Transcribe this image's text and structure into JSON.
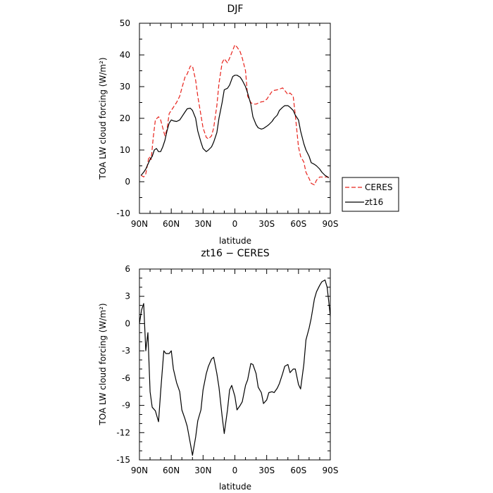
{
  "chart_data": [
    {
      "type": "line",
      "title": "DJF",
      "xlabel": "latitude",
      "ylabel": "TOA LW cloud forcing (W/m²)",
      "xlim": [
        90,
        -90
      ],
      "ylim": [
        -10,
        50
      ],
      "x_ticks": [
        90,
        60,
        30,
        0,
        -30,
        -60,
        -90
      ],
      "x_tick_labels": [
        "90N",
        "60N",
        "30N",
        "0",
        "30S",
        "60S",
        "90S"
      ],
      "y_ticks": [
        -10,
        0,
        10,
        20,
        30,
        40,
        50
      ],
      "y_tick_labels": [
        "-10",
        "0",
        "10",
        "20",
        "30",
        "40",
        "50"
      ],
      "legend_position": "right, outside plot",
      "series": [
        {
          "name": "CERES",
          "color": "#e8231c",
          "dash": "dashed",
          "x": [
            88.5,
            86,
            84,
            81,
            79,
            77,
            75,
            72,
            70,
            68,
            66,
            64,
            62,
            60,
            57,
            55,
            52,
            50,
            47,
            45,
            42,
            40,
            37,
            35,
            32,
            30,
            27,
            25,
            22,
            20,
            17,
            15,
            12,
            10,
            7,
            5,
            2,
            0,
            -2,
            -5,
            -7,
            -10,
            -12,
            -15,
            -17,
            -20,
            -22,
            -25,
            -27,
            -30,
            -32,
            -35,
            -37,
            -40,
            -42,
            -45,
            -47,
            -50,
            -52,
            -55,
            -57,
            -60,
            -62,
            -65,
            -67,
            -70,
            -72,
            -75,
            -77,
            -80,
            -82,
            -85,
            -87,
            -88.5
          ],
          "y": [
            2,
            1.5,
            2.5,
            8,
            7,
            14,
            19.5,
            20.5,
            19.5,
            17,
            14.5,
            16.5,
            21.5,
            22.5,
            24,
            25,
            27,
            29.5,
            33,
            34,
            36.5,
            36.5,
            32,
            27,
            21,
            17,
            14,
            13.5,
            14.5,
            17,
            24,
            31,
            37.5,
            38.8,
            37.5,
            39,
            41.5,
            43.2,
            42.5,
            41,
            39,
            35,
            27,
            25,
            24.5,
            24.5,
            24.8,
            25.2,
            25.3,
            26,
            27,
            28.5,
            28.8,
            29,
            29.2,
            29.6,
            28.8,
            27.5,
            28,
            27,
            21,
            11,
            8,
            6.2,
            3,
            1,
            -0.5,
            -1,
            0.5,
            1.5,
            1.5,
            1.5,
            1.5,
            1.5
          ]
        },
        {
          "name": "zt16",
          "color": "#000000",
          "dash": "solid",
          "x": [
            88.5,
            86,
            84,
            82,
            80,
            78,
            76,
            74,
            72,
            70,
            68,
            66,
            64,
            62,
            60,
            58,
            55,
            52,
            50,
            47,
            45,
            42,
            40,
            37,
            35,
            32,
            30,
            27,
            25,
            22,
            20,
            17,
            15,
            12,
            10,
            7,
            5,
            2,
            0,
            -2,
            -5,
            -7,
            -10,
            -12,
            -15,
            -17,
            -20,
            -22,
            -25,
            -27,
            -30,
            -32,
            -35,
            -37,
            -40,
            -42,
            -45,
            -47,
            -50,
            -52,
            -55,
            -57,
            -60,
            -62,
            -65,
            -67,
            -70,
            -72,
            -75,
            -77,
            -80,
            -82,
            -85,
            -87,
            -88.5
          ],
          "y": [
            2,
            3,
            4,
            5.5,
            7,
            8,
            10,
            10.5,
            9.5,
            9.5,
            11,
            13,
            16,
            18.5,
            19.5,
            19.2,
            19,
            19.5,
            20.5,
            22,
            23,
            23.2,
            22.5,
            20,
            16,
            12.5,
            10.5,
            9.5,
            10,
            11,
            12.5,
            15.5,
            20,
            25,
            29,
            29.5,
            30.5,
            33.2,
            33.6,
            33.6,
            33,
            32,
            30,
            28,
            24.5,
            20.5,
            18,
            17,
            16.6,
            16.8,
            17.5,
            18,
            19,
            20,
            21,
            22.5,
            23.5,
            24,
            24,
            23.5,
            22.5,
            21,
            19.5,
            16,
            12,
            10,
            8,
            6,
            5.5,
            5,
            4,
            3,
            2,
            1.6,
            1.2
          ]
        }
      ]
    },
    {
      "type": "line",
      "title": "zt16 − CERES",
      "xlabel": "latitude",
      "ylabel": "TOA LW cloud forcing (W/m²)",
      "xlim": [
        90,
        -90
      ],
      "ylim": [
        -15,
        6
      ],
      "x_ticks": [
        90,
        60,
        30,
        0,
        -30,
        -60,
        -90
      ],
      "x_tick_labels": [
        "90N",
        "60N",
        "30N",
        "0",
        "30S",
        "60S",
        "90S"
      ],
      "y_ticks": [
        -15,
        -12,
        -9,
        -6,
        -3,
        0,
        3,
        6
      ],
      "y_tick_labels": [
        "-15",
        "-12",
        "-9",
        "-6",
        "-3",
        "0",
        "3",
        "6"
      ],
      "series": [
        {
          "color": "#000000",
          "dash": "solid",
          "x": [
            90,
            88,
            86,
            84,
            82,
            80,
            78,
            75,
            72,
            70,
            67,
            65,
            62,
            60,
            58,
            55,
            52,
            50,
            47,
            45,
            42,
            40,
            37,
            35,
            32,
            30,
            27,
            25,
            22,
            20,
            17,
            15,
            12,
            10,
            7,
            5,
            3,
            0,
            -2,
            -5,
            -7,
            -10,
            -12,
            -15,
            -17,
            -20,
            -22,
            -25,
            -27,
            -30,
            -32,
            -35,
            -37,
            -40,
            -42,
            -45,
            -47,
            -50,
            -52,
            -55,
            -57,
            -60,
            -62,
            -65,
            -67,
            -70,
            -72,
            -75,
            -77,
            -80,
            -82,
            -85,
            -87,
            -88.5,
            -90
          ],
          "y": [
            0,
            1.5,
            2.2,
            -3,
            -1,
            -7.5,
            -9.2,
            -9.6,
            -10.8,
            -7.5,
            -3,
            -3.3,
            -3.3,
            -3,
            -5,
            -6.5,
            -7.5,
            -9.5,
            -10.5,
            -11.3,
            -13.2,
            -14.5,
            -12.5,
            -10.7,
            -9.5,
            -7.3,
            -5.5,
            -4.7,
            -3.9,
            -3.7,
            -5.5,
            -7,
            -10.2,
            -12.1,
            -9.5,
            -7.3,
            -6.8,
            -8,
            -9.5,
            -9,
            -8.6,
            -6.8,
            -6.2,
            -4.4,
            -4.5,
            -5.5,
            -7,
            -7.6,
            -8.8,
            -8.4,
            -7.6,
            -7.5,
            -7.6,
            -7.1,
            -6.6,
            -5.5,
            -4.7,
            -4.5,
            -5.4,
            -5,
            -5,
            -6.7,
            -7.2,
            -4.5,
            -1.8,
            -0.5,
            0.6,
            2.7,
            3.5,
            4.2,
            4.6,
            4.8,
            4,
            2.5,
            0.8
          ]
        }
      ]
    }
  ]
}
